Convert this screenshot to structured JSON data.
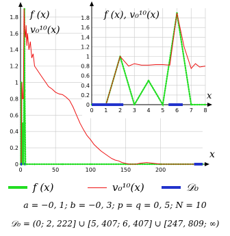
{
  "chart_data": [
    {
      "type": "line",
      "xlim": [
        0,
        260
      ],
      "ylim": [
        0,
        1.9
      ],
      "xticks": [
        0,
        50,
        100,
        150,
        200
      ],
      "yticks": [
        0,
        0.2,
        0.4,
        0.6,
        0.8,
        1,
        1.2,
        1.4,
        1.6,
        1.8
      ],
      "xlabel": "x",
      "ylabel_lines": [
        "f (x)",
        "v₀¹⁰(x)"
      ],
      "grid": true,
      "series": [
        {
          "name": "f (x)",
          "color": "#22dd22",
          "style": "dotted",
          "x": [
            0,
            0.5,
            1,
            1.5,
            2,
            2.5,
            3,
            3.5,
            4,
            4.5,
            5,
            5.5,
            6,
            6.5,
            7,
            7.5,
            8,
            20,
            60,
            100,
            150,
            200,
            260
          ],
          "y": [
            0,
            0,
            1,
            0.5,
            0,
            0.25,
            0.5,
            0.25,
            0,
            0,
            1,
            1.9,
            0.9,
            0.5,
            0,
            0,
            0,
            0,
            0,
            0,
            0,
            0,
            0
          ]
        },
        {
          "name": "v₀¹⁰(x)",
          "color": "#ee1111",
          "style": "solid",
          "x": [
            0,
            1,
            2,
            3,
            4,
            5,
            6,
            7,
            8,
            9,
            10,
            12,
            14,
            16,
            18,
            20,
            24,
            28,
            32,
            36,
            40,
            45,
            50,
            55,
            60,
            65,
            70,
            75,
            80,
            85,
            90,
            95,
            100,
            105,
            110,
            115,
            120,
            125,
            130,
            135,
            140,
            145,
            150,
            155,
            160,
            165,
            170,
            180,
            190,
            200,
            210,
            220,
            230,
            240,
            250,
            260
          ],
          "y": [
            0,
            0.0,
            1.0,
            0.8,
            0.8,
            1.9,
            1.65,
            1.55,
            1.7,
            1.45,
            1.6,
            1.4,
            1.5,
            1.3,
            1.35,
            1.2,
            1.15,
            1.1,
            1.05,
            1.0,
            0.95,
            0.92,
            0.88,
            0.86,
            0.85,
            0.82,
            0.78,
            0.7,
            0.6,
            0.5,
            0.42,
            0.35,
            0.3,
            0.24,
            0.2,
            0.16,
            0.13,
            0.1,
            0.07,
            0.05,
            0.04,
            0.02,
            0.01,
            0.0,
            0.0,
            0.0,
            0.01,
            0.02,
            0.01,
            0.0,
            0.0,
            0.0,
            0.0,
            0.0,
            0.0,
            0.0
          ]
        },
        {
          "name": "D₀",
          "color": "#2233cc",
          "style": "thick",
          "x_intervals": [
            [
              0,
              2.222
            ],
            [
              5.407,
              6.407
            ],
            [
              247.809,
              260
            ]
          ]
        }
      ]
    },
    {
      "type": "line",
      "inset": true,
      "xlim": [
        0,
        8
      ],
      "ylim": [
        0,
        2
      ],
      "xticks": [
        0,
        1,
        2,
        3,
        4,
        5,
        6,
        7,
        8
      ],
      "yticks": [
        0,
        0.2,
        0.4,
        0.6,
        0.8,
        1,
        1.2,
        1.4,
        1.6,
        1.8
      ],
      "xlabel": "x",
      "ylabel": "f (x), v₀¹⁰(x)",
      "grid": true,
      "series": [
        {
          "name": "f (x)",
          "color": "#22dd22",
          "style": "dotted",
          "x": [
            0,
            1,
            2,
            3,
            4,
            5,
            6,
            7,
            8
          ],
          "y": [
            0,
            0,
            1,
            0,
            0.5,
            0,
            1.9,
            0,
            0
          ]
        },
        {
          "name": "v₀¹⁰(x)",
          "color": "#ee1111",
          "style": "solid",
          "x": [
            0,
            1,
            2,
            2.6,
            3.0,
            3.5,
            4,
            4.5,
            5,
            5.5,
            6,
            6.5,
            7,
            7.3,
            7.6,
            8
          ],
          "y": [
            0,
            0,
            1,
            0.8,
            0.85,
            0.82,
            0.82,
            0.83,
            0.83,
            0.82,
            1.9,
            1.2,
            0.75,
            0.85,
            0.78,
            0.8
          ]
        },
        {
          "name": "D₀",
          "color": "#2233cc",
          "style": "thick",
          "x_intervals": [
            [
              0,
              2.222
            ],
            [
              5.407,
              6.407
            ]
          ]
        }
      ]
    }
  ],
  "legend": {
    "items": [
      {
        "label": "f (x)",
        "color": "#22dd22"
      },
      {
        "label": "v₀¹⁰(x)",
        "color": "#ee1111"
      },
      {
        "label": "𝒟₀",
        "color": "#2233cc"
      }
    ]
  },
  "params_text": "a = −0, 1;   b = −0, 3;   p = q = 0, 5;   N = 10",
  "domain_text": "𝒟₀ = (0; 2, 222] ∪ [5, 407; 6, 407] ∪ [247, 809; ∞)"
}
